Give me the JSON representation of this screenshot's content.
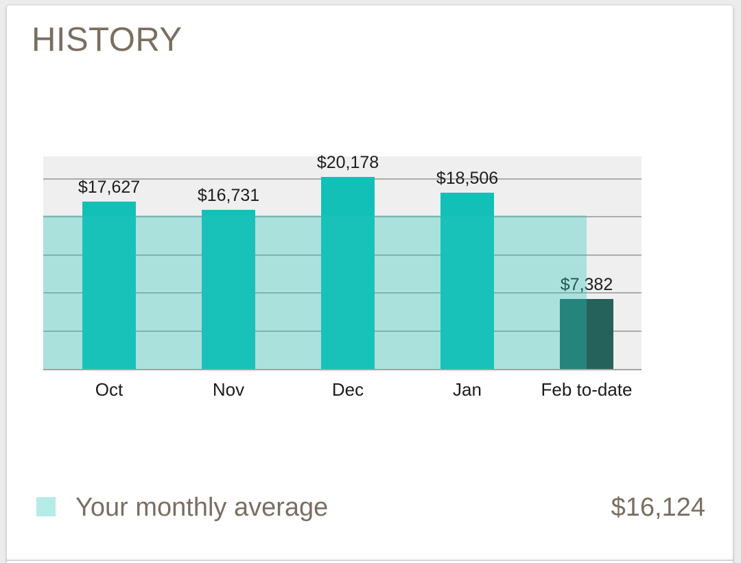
{
  "card": {
    "title": "HISTORY"
  },
  "chart_data": {
    "type": "bar",
    "title": "HISTORY",
    "categories": [
      "Oct",
      "Nov",
      "Dec",
      "Jan",
      "Feb to-date"
    ],
    "values": [
      17627,
      16731,
      20178,
      18506,
      7382
    ],
    "value_labels": [
      "$17,627",
      "$16,731",
      "$20,178",
      "$18,506",
      "$7,382"
    ],
    "xlabel": "",
    "ylabel": "",
    "ylim": [
      0,
      22500
    ],
    "gridline_interval": 4000,
    "grid": true,
    "legend_position": "bottom",
    "current_index": 4,
    "bar_color": "#12c0b8",
    "current_bar_color": "#25625b",
    "average_band_color": "rgba(37, 199, 187, 0.34)",
    "gridline_color": "#ababab",
    "plot_bg": "#efefef",
    "average": {
      "label": "Your monthly average",
      "value": 16124,
      "value_label": "$16,124"
    }
  }
}
